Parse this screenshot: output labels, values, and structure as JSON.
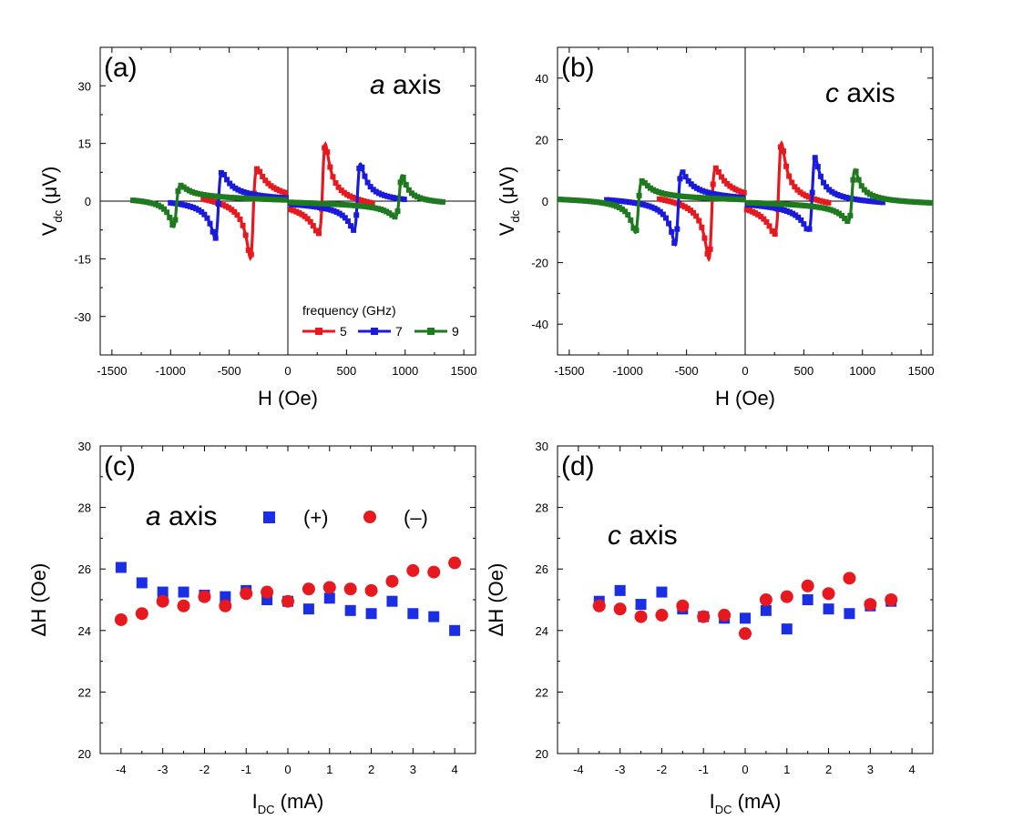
{
  "chart_data": [
    {
      "id": "a",
      "type": "line",
      "panel_label": "(a)",
      "annotation_italic": "a",
      "annotation_rest": " axis",
      "xlabel": "H (Oe)",
      "ylabel_main": "V",
      "ylabel_sub": "dc",
      "ylabel_tail": " (μV)",
      "xlim": [
        -1600,
        1600
      ],
      "ylim": [
        -40,
        40
      ],
      "xticks": [
        -1500,
        -1000,
        -500,
        0,
        500,
        1000,
        1500
      ],
      "yticks": [
        -30,
        -15,
        0,
        15,
        30
      ],
      "zero_lines": true,
      "legend": {
        "title": "frequency (GHz)",
        "placement": "lower-right"
      },
      "series": [
        {
          "name": "5",
          "color": "#e8181f",
          "resonance_field": 300,
          "linewidth": 28,
          "amplitude": 22,
          "offset": 8,
          "edge": 720
        },
        {
          "name": "7",
          "color": "#1a1adc",
          "resonance_field": 595,
          "linewidth": 28,
          "amplitude": 17,
          "offset": 3,
          "edge": 1000
        },
        {
          "name": "9",
          "color": "#1e7a1e",
          "resonance_field": 955,
          "linewidth": 28,
          "amplitude": 10,
          "offset": 4,
          "edge": 1320
        }
      ]
    },
    {
      "id": "b",
      "type": "line",
      "panel_label": "(b)",
      "annotation_italic": "c",
      "annotation_rest": " axis",
      "xlabel": "H (Oe)",
      "ylabel_main": "V",
      "ylabel_sub": "dc",
      "ylabel_tail": " (μV)",
      "xlim": [
        -1600,
        1600
      ],
      "ylim": [
        -50,
        50
      ],
      "xticks": [
        -1500,
        -1000,
        -500,
        0,
        500,
        1000,
        1500
      ],
      "yticks": [
        -40,
        -20,
        0,
        20,
        40
      ],
      "zero_lines": true,
      "series": [
        {
          "name": "5",
          "color": "#e8181f",
          "resonance_field": 290,
          "linewidth": 28,
          "amplitude": 28,
          "offset": 10,
          "edge": 730
        },
        {
          "name": "7",
          "color": "#1a1adc",
          "resonance_field": 575,
          "linewidth": 28,
          "amplitude": 23,
          "offset": 6,
          "edge": 1180
        },
        {
          "name": "9",
          "color": "#1e7a1e",
          "resonance_field": 915,
          "linewidth": 28,
          "amplitude": 16,
          "offset": 5,
          "edge": 1600
        }
      ]
    },
    {
      "id": "c",
      "type": "scatter",
      "panel_label": "(c)",
      "annotation_italic": "a",
      "annotation_rest": " axis",
      "xlabel_main": "I",
      "xlabel_sub": "DC",
      "xlabel_tail": " (mA)",
      "ylabel": "ΔH (Oe)",
      "xlim": [
        -4.5,
        4.5
      ],
      "ylim": [
        20,
        30
      ],
      "xticks": [
        -4,
        -3,
        -2,
        -1,
        0,
        1,
        2,
        3,
        4
      ],
      "yticks": [
        20,
        22,
        24,
        26,
        28,
        30
      ],
      "legend": {
        "placement": "top",
        "plus_label": "(+)",
        "minus_label": "(–)"
      },
      "series": [
        {
          "name": "(+)",
          "marker": "square",
          "color": "#1a2ee6",
          "x": [
            -4,
            -3.5,
            -3,
            -2.5,
            -2,
            -1.5,
            -1,
            -0.5,
            0,
            0.5,
            1,
            1.5,
            2,
            2.5,
            3,
            3.5,
            4
          ],
          "y": [
            26.05,
            25.55,
            25.25,
            25.25,
            25.15,
            25.1,
            25.3,
            25.0,
            24.95,
            24.7,
            25.05,
            24.65,
            24.55,
            24.95,
            24.55,
            24.45,
            24.0
          ]
        },
        {
          "name": "(–)",
          "marker": "circle",
          "color": "#e8181f",
          "x": [
            -4,
            -3.5,
            -3,
            -2.5,
            -2,
            -1.5,
            -1,
            -0.5,
            0,
            0.5,
            1,
            1.5,
            2,
            2.5,
            3,
            3.5,
            4
          ],
          "y": [
            24.35,
            24.55,
            24.95,
            24.8,
            25.1,
            24.8,
            25.2,
            25.25,
            24.95,
            25.35,
            25.4,
            25.35,
            25.3,
            25.6,
            25.95,
            25.9,
            26.2
          ]
        }
      ]
    },
    {
      "id": "d",
      "type": "scatter",
      "panel_label": "(d)",
      "annotation_italic": "c",
      "annotation_rest": " axis",
      "xlabel_main": "I",
      "xlabel_sub": "DC",
      "xlabel_tail": " (mA)",
      "ylabel": "ΔH (Oe)",
      "xlim": [
        -4.5,
        4.5
      ],
      "ylim": [
        20,
        30
      ],
      "xticks": [
        -4,
        -3,
        -2,
        -1,
        0,
        1,
        2,
        3,
        4
      ],
      "yticks": [
        20,
        22,
        24,
        26,
        28,
        30
      ],
      "series": [
        {
          "name": "(+)",
          "marker": "square",
          "color": "#1a2ee6",
          "x": [
            -3.5,
            -3,
            -2.5,
            -2,
            -1.5,
            -1,
            -0.5,
            0,
            0.5,
            1,
            1.5,
            2,
            2.5,
            3,
            3.5
          ],
          "y": [
            24.95,
            25.3,
            24.85,
            25.25,
            24.7,
            24.45,
            24.4,
            24.4,
            24.65,
            24.05,
            25.0,
            24.7,
            24.55,
            24.8,
            24.95
          ]
        },
        {
          "name": "(–)",
          "marker": "circle",
          "color": "#e8181f",
          "x": [
            -3.5,
            -3,
            -2.5,
            -2,
            -1.5,
            -1,
            -0.5,
            0,
            0.5,
            1,
            1.5,
            2,
            2.5,
            3,
            3.5
          ],
          "y": [
            24.8,
            24.7,
            24.45,
            24.5,
            24.8,
            24.45,
            24.5,
            23.9,
            25.0,
            25.1,
            25.45,
            25.2,
            25.7,
            24.85,
            25.0
          ]
        }
      ]
    }
  ]
}
